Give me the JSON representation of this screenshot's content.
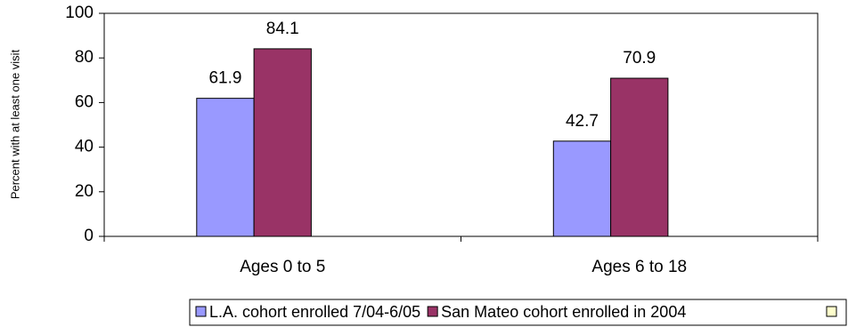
{
  "chart_data": {
    "type": "bar",
    "y_label": "Percent with at least one visit",
    "categories": [
      "Ages 0 to 5",
      "Ages 6 to 18"
    ],
    "series": [
      {
        "name": "L.A. cohort enrolled 7/04-6/05",
        "color": "#9999ff",
        "values": [
          61.9,
          42.7
        ]
      },
      {
        "name": "San Mateo cohort enrolled in 2004",
        "color": "#993366",
        "values": [
          84.1,
          70.9
        ]
      }
    ],
    "ylim": [
      0,
      100
    ],
    "yticks": [
      0,
      20,
      40,
      60,
      80,
      100
    ]
  }
}
